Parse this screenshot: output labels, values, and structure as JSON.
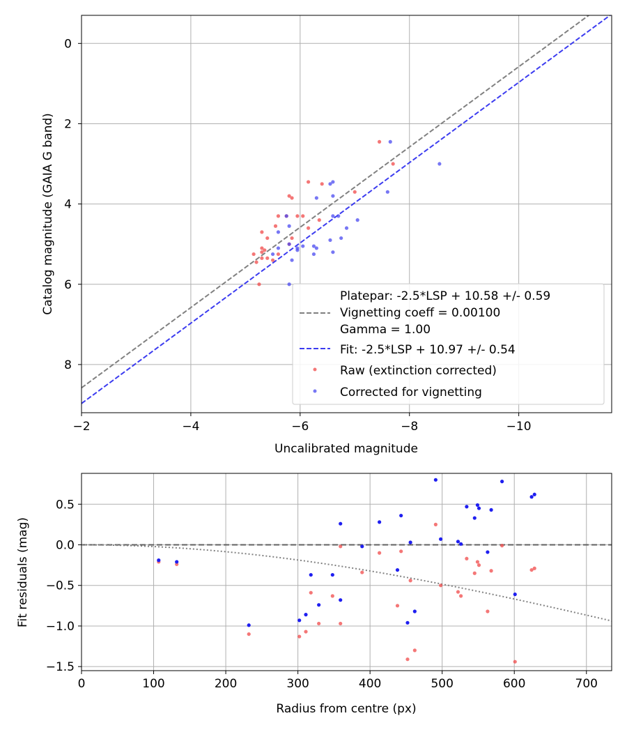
{
  "chart_data": [
    {
      "type": "scatter",
      "xlabel": "Uncalibrated magnitude",
      "ylabel": "Catalog magnitude (GAIA G band)",
      "xlim": [
        -2,
        -11.7
      ],
      "ylim": [
        9.2,
        -0.7
      ],
      "x_inverted": true,
      "y_inverted": true,
      "xticks": [
        -2,
        -4,
        -6,
        -8,
        -10
      ],
      "xtick_labels": [
        "−2",
        "−4",
        "−6",
        "−8",
        "−10"
      ],
      "yticks": [
        0,
        2,
        4,
        6,
        8
      ],
      "ytick_labels": [
        "0",
        "2",
        "4",
        "6",
        "8"
      ],
      "grid": true,
      "legend_position": "lower-right",
      "legend": {
        "platepar_line1": "Platepar: -2.5*LSP + 10.58 +/- 0.59",
        "platepar_line2": "Vignetting coeff = 0.00100",
        "platepar_line3": "Gamma = 1.00",
        "fit": "Fit: -2.5*LSP + 10.97 +/- 0.54",
        "raw": "Raw (extinction corrected)",
        "corrected": "Corrected for vignetting"
      },
      "lines": [
        {
          "name": "Platepar: -2.5*LSP + 10.58 +/- 0.59",
          "intercept": 10.58,
          "slope": 1.0,
          "color": "#808080",
          "style": "dashed"
        },
        {
          "name": "Fit: -2.5*LSP + 10.97 +/- 0.54",
          "intercept": 10.97,
          "slope": 1.0,
          "color": "#3b3bf0",
          "style": "dashed"
        }
      ],
      "series": [
        {
          "name": "Raw (extinction corrected)",
          "color": "#f04a4a",
          "points": [
            [
              -7.45,
              2.45
            ],
            [
              -7.7,
              3.0
            ],
            [
              -7.0,
              3.7
            ],
            [
              -6.15,
              3.45
            ],
            [
              -6.4,
              3.5
            ],
            [
              -5.8,
              3.8
            ],
            [
              -5.85,
              3.85
            ],
            [
              -6.35,
              4.4
            ],
            [
              -6.15,
              4.6
            ],
            [
              -6.05,
              4.3
            ],
            [
              -5.95,
              4.3
            ],
            [
              -5.75,
              4.3
            ],
            [
              -5.6,
              4.3
            ],
            [
              -5.55,
              4.55
            ],
            [
              -5.3,
              4.7
            ],
            [
              -5.4,
              4.85
            ],
            [
              -5.85,
              4.85
            ],
            [
              -5.8,
              5.0
            ],
            [
              -5.3,
              5.1
            ],
            [
              -5.35,
              5.15
            ],
            [
              -5.3,
              5.2
            ],
            [
              -5.15,
              5.25
            ],
            [
              -5.6,
              5.25
            ],
            [
              -5.4,
              5.35
            ],
            [
              -5.3,
              5.35
            ],
            [
              -5.5,
              5.4
            ],
            [
              -5.2,
              5.45
            ],
            [
              -5.25,
              6.0
            ]
          ]
        },
        {
          "name": "Corrected for vignetting",
          "color": "#4a4af0",
          "points": [
            [
              -7.65,
              2.45
            ],
            [
              -8.55,
              3.0
            ],
            [
              -7.6,
              3.7
            ],
            [
              -6.6,
              3.45
            ],
            [
              -6.55,
              3.5
            ],
            [
              -6.6,
              3.8
            ],
            [
              -6.3,
              3.85
            ],
            [
              -6.6,
              4.3
            ],
            [
              -6.7,
              4.3
            ],
            [
              -6.85,
              4.6
            ],
            [
              -7.05,
              4.4
            ],
            [
              -5.75,
              4.3
            ],
            [
              -5.8,
              4.55
            ],
            [
              -6.75,
              4.85
            ],
            [
              -6.55,
              4.9
            ],
            [
              -5.8,
              5.0
            ],
            [
              -5.95,
              5.1
            ],
            [
              -6.05,
              5.05
            ],
            [
              -6.25,
              5.05
            ],
            [
              -5.95,
              5.15
            ],
            [
              -6.3,
              5.1
            ],
            [
              -6.6,
              5.2
            ],
            [
              -6.25,
              5.25
            ],
            [
              -5.6,
              4.7
            ],
            [
              -5.5,
              5.25
            ],
            [
              -5.6,
              5.1
            ],
            [
              -5.85,
              5.4
            ],
            [
              -5.8,
              6.0
            ]
          ]
        }
      ]
    },
    {
      "type": "scatter",
      "xlabel": "Radius from centre (px)",
      "ylabel": "Fit residuals (mag)",
      "xlim": [
        0,
        735
      ],
      "ylim": [
        -1.55,
        0.88
      ],
      "xticks": [
        0,
        100,
        200,
        300,
        400,
        500,
        600,
        700
      ],
      "xtick_labels": [
        "0",
        "100",
        "200",
        "300",
        "400",
        "500",
        "600",
        "700"
      ],
      "yticks": [
        0.5,
        0.0,
        -0.5,
        -1.0,
        -1.5
      ],
      "ytick_labels": [
        "0.5",
        "0.0",
        "−0.5",
        "−1.0",
        "−1.5"
      ],
      "grid": true,
      "reference_line": {
        "y": 0.0,
        "color": "#606060",
        "style": "dashed"
      },
      "vignetting_curve": {
        "coeff": 0.001,
        "color": "#808080",
        "style": "dotted"
      },
      "series": [
        {
          "name": "Raw (extinction corrected)",
          "color": "#f04a4a",
          "points": [
            [
              107,
              -0.21
            ],
            [
              132,
              -0.24
            ],
            [
              232,
              -1.1
            ],
            [
              302,
              -1.13
            ],
            [
              311,
              -1.07
            ],
            [
              318,
              -0.59
            ],
            [
              329,
              -0.97
            ],
            [
              348,
              -0.63
            ],
            [
              359,
              -0.02
            ],
            [
              359,
              -0.97
            ],
            [
              389,
              -0.34
            ],
            [
              413,
              -0.1
            ],
            [
              438,
              -0.75
            ],
            [
              443,
              -0.08
            ],
            [
              452,
              -1.41
            ],
            [
              456,
              -0.44
            ],
            [
              462,
              -1.3
            ],
            [
              491,
              0.25
            ],
            [
              498,
              -0.5
            ],
            [
              522,
              -0.58
            ],
            [
              526,
              -0.63
            ],
            [
              534,
              -0.17
            ],
            [
              545,
              -0.35
            ],
            [
              549,
              -0.21
            ],
            [
              551,
              -0.25
            ],
            [
              563,
              -0.82
            ],
            [
              568,
              -0.32
            ],
            [
              583,
              -0.01
            ],
            [
              601,
              -1.44
            ],
            [
              624,
              -0.31
            ],
            [
              628,
              -0.29
            ]
          ]
        },
        {
          "name": "Corrected for vignetting",
          "color": "#1f1ff0",
          "points": [
            [
              107,
              -0.19
            ],
            [
              132,
              -0.21
            ],
            [
              232,
              -0.99
            ],
            [
              302,
              -0.93
            ],
            [
              311,
              -0.86
            ],
            [
              318,
              -0.37
            ],
            [
              329,
              -0.74
            ],
            [
              348,
              -0.37
            ],
            [
              359,
              0.26
            ],
            [
              359,
              -0.68
            ],
            [
              389,
              -0.02
            ],
            [
              413,
              0.28
            ],
            [
              438,
              -0.31
            ],
            [
              443,
              0.36
            ],
            [
              452,
              -0.96
            ],
            [
              456,
              0.03
            ],
            [
              462,
              -0.82
            ],
            [
              491,
              0.8
            ],
            [
              498,
              0.07
            ],
            [
              522,
              0.04
            ],
            [
              526,
              0.01
            ],
            [
              534,
              0.47
            ],
            [
              545,
              0.33
            ],
            [
              549,
              0.49
            ],
            [
              551,
              0.45
            ],
            [
              563,
              -0.09
            ],
            [
              568,
              0.43
            ],
            [
              583,
              0.78
            ],
            [
              601,
              -0.61
            ],
            [
              624,
              0.59
            ],
            [
              628,
              0.62
            ]
          ]
        }
      ]
    }
  ]
}
